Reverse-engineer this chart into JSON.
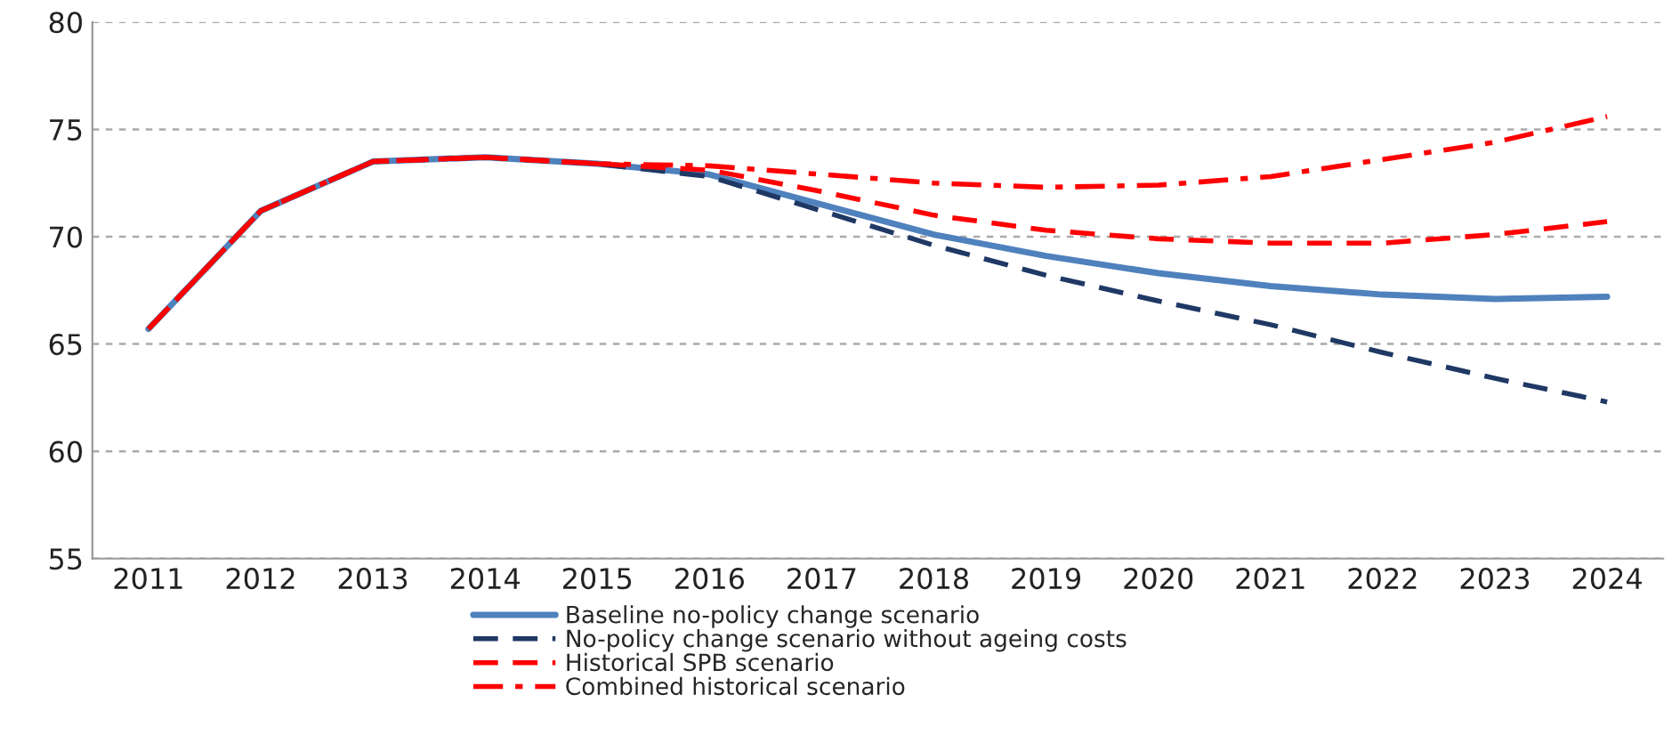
{
  "chart_data": {
    "type": "line",
    "categories": [
      "2011",
      "2012",
      "2013",
      "2014",
      "2015",
      "2016",
      "2017",
      "2018",
      "2019",
      "2020",
      "2021",
      "2022",
      "2023",
      "2024"
    ],
    "series": [
      {
        "name": "Baseline no-policy change scenario",
        "color": "#4f81bd",
        "line_style": "solid",
        "values": [
          65.7,
          71.2,
          73.5,
          73.7,
          73.4,
          72.9,
          71.5,
          70.1,
          69.1,
          68.3,
          67.7,
          67.3,
          67.1,
          67.2
        ]
      },
      {
        "name": "No-policy change scenario without ageing costs",
        "color": "#1f3864",
        "line_style": "dashed",
        "values": [
          65.7,
          71.2,
          73.5,
          73.7,
          73.4,
          72.8,
          71.2,
          69.6,
          68.2,
          67.0,
          65.9,
          64.6,
          63.4,
          62.3
        ]
      },
      {
        "name": "Historical SPB scenario",
        "color": "#ff0000",
        "line_style": "dashed",
        "values": [
          65.7,
          71.2,
          73.5,
          73.7,
          73.4,
          73.1,
          72.1,
          71.0,
          70.3,
          69.9,
          69.7,
          69.7,
          70.1,
          70.7
        ]
      },
      {
        "name": "Combined historical scenario",
        "color": "#ff0000",
        "line_style": "dashdot",
        "values": [
          65.7,
          71.2,
          73.5,
          73.7,
          73.4,
          73.3,
          72.9,
          72.5,
          72.3,
          72.4,
          72.8,
          73.6,
          74.4,
          75.6
        ]
      }
    ],
    "ylim": [
      55,
      80
    ],
    "yticks": [
      55,
      60,
      65,
      70,
      75,
      80
    ],
    "grid": "y",
    "legend": "bottom",
    "marker": "none"
  }
}
